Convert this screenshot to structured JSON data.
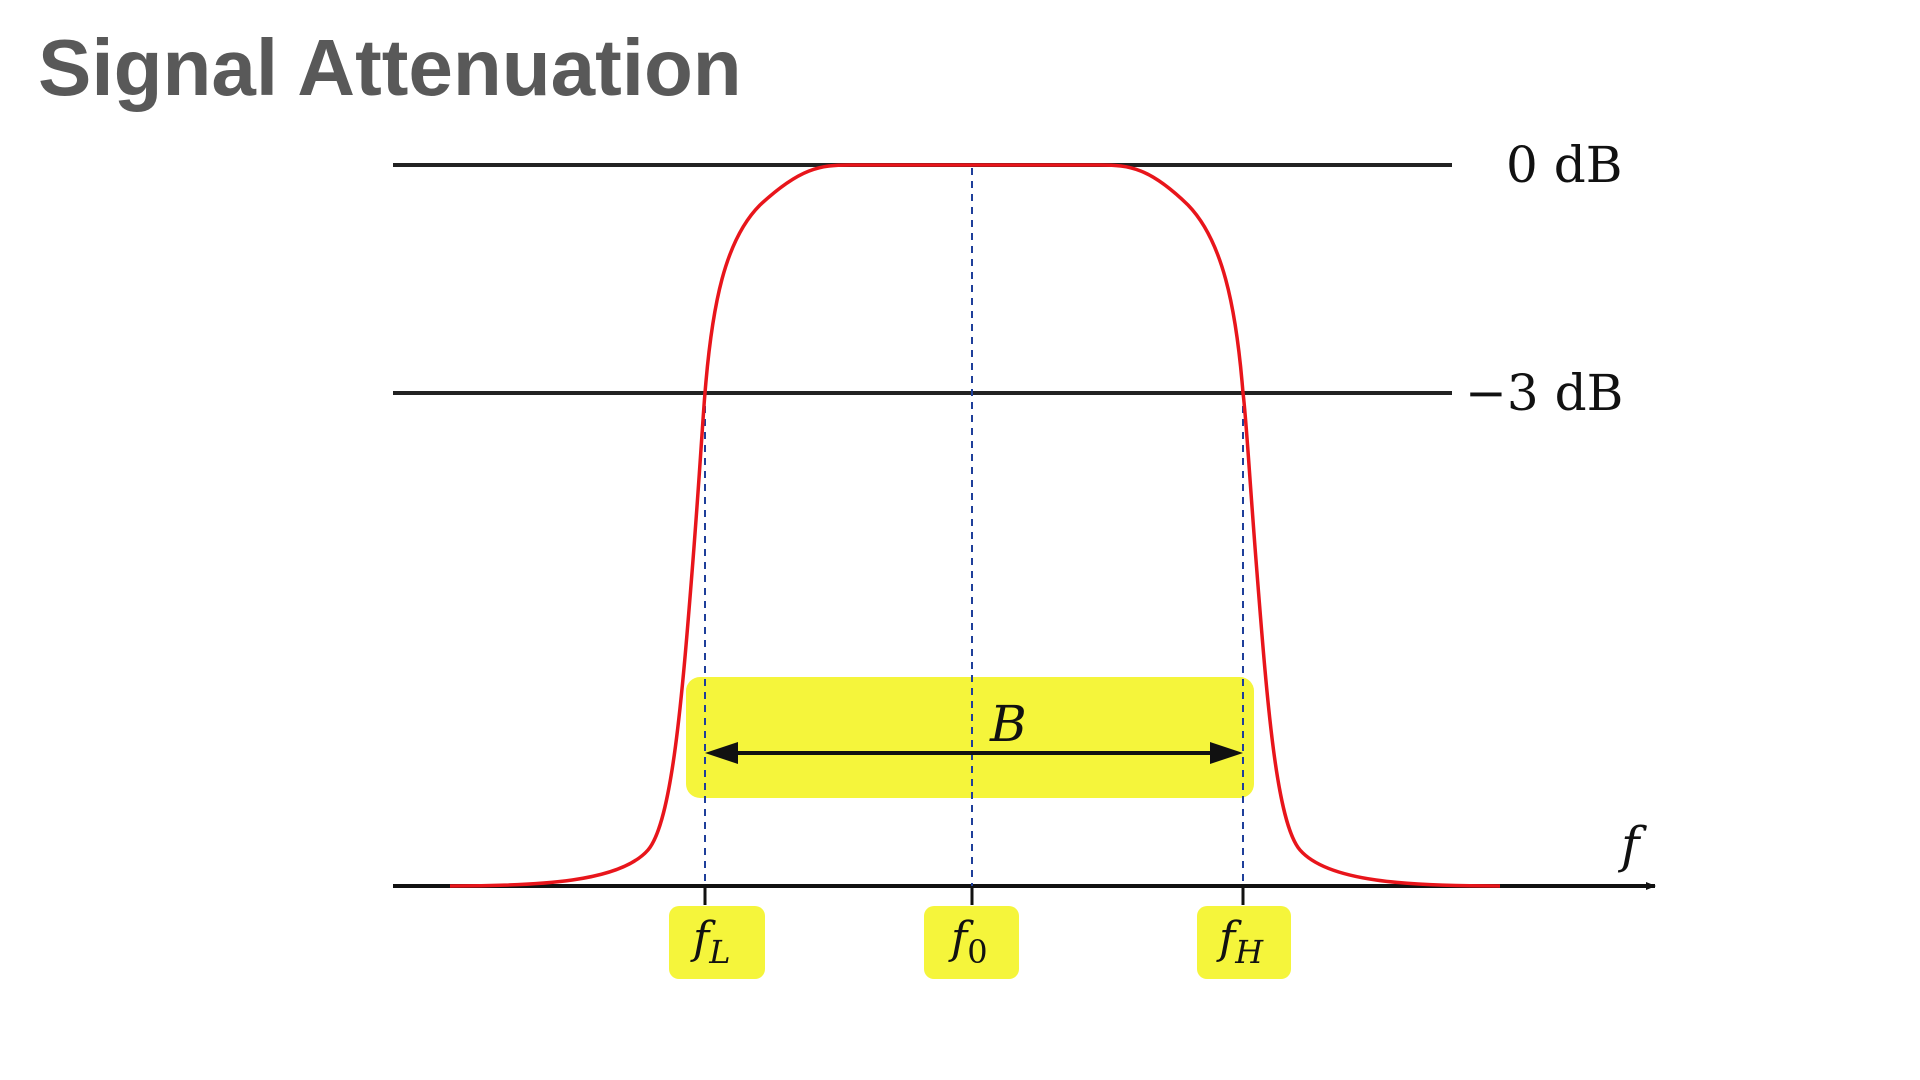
{
  "slide": {
    "title": "Signal Attenuation"
  },
  "diagram": {
    "level_labels": {
      "zero_db": "0 dB",
      "minus3_db": "−3 dB"
    },
    "axis_label": "f",
    "bandwidth_label": "B",
    "frequency_markers": [
      {
        "symbol": "f",
        "subscript": "L"
      },
      {
        "symbol": "f",
        "subscript": "0"
      },
      {
        "symbol": "f",
        "subscript": "H"
      }
    ],
    "colors": {
      "response_curve": "#e8151b",
      "reference_lines": "#222222",
      "guide_lines": "#1f3f9a",
      "highlight": "#f5f53b",
      "title": "#595959"
    }
  }
}
